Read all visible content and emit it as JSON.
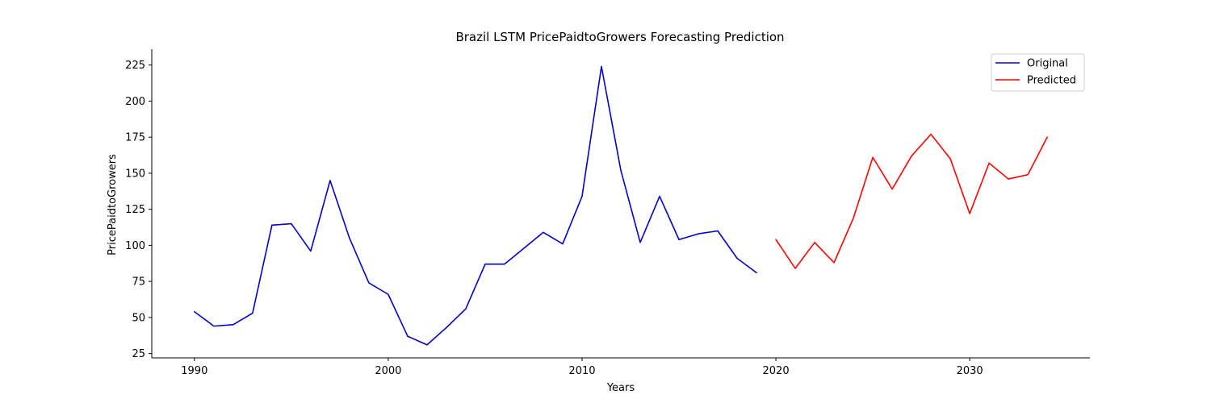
{
  "chart_data": {
    "type": "line",
    "title": "Brazil LSTM PricePaidtoGrowers Forecasting Prediction",
    "xlabel": "Years",
    "ylabel": "PricePaidtoGrowers",
    "xlim": [
      1987.8,
      2036.2
    ],
    "ylim": [
      22,
      236
    ],
    "xticks": [
      1990,
      2000,
      2010,
      2020,
      2030
    ],
    "yticks": [
      25,
      50,
      75,
      100,
      125,
      150,
      175,
      200,
      225
    ],
    "grid": false,
    "legend_position": "top-right",
    "series": [
      {
        "name": "Original",
        "color": "#0000cc",
        "x": [
          1990,
          1991,
          1992,
          1993,
          1994,
          1995,
          1996,
          1997,
          1998,
          1999,
          2000,
          2001,
          2002,
          2003,
          2004,
          2005,
          2006,
          2007,
          2008,
          2009,
          2010,
          2011,
          2012,
          2013,
          2014,
          2015,
          2016,
          2017,
          2018,
          2019
        ],
        "y": [
          54,
          44,
          45,
          53,
          114,
          115,
          96,
          145,
          105,
          74,
          66,
          37,
          31,
          43,
          56,
          87,
          87,
          98,
          109,
          101,
          134,
          224,
          152,
          102,
          134,
          104,
          108,
          110,
          91,
          81
        ]
      },
      {
        "name": "Predicted",
        "color": "#ff0000",
        "x": [
          2020,
          2021,
          2022,
          2023,
          2024,
          2025,
          2026,
          2027,
          2028,
          2029,
          2030,
          2031,
          2032,
          2033,
          2034
        ],
        "y": [
          104,
          84,
          102,
          88,
          119,
          161,
          139,
          162,
          177,
          160,
          122,
          157,
          146,
          149,
          175
        ]
      }
    ]
  }
}
